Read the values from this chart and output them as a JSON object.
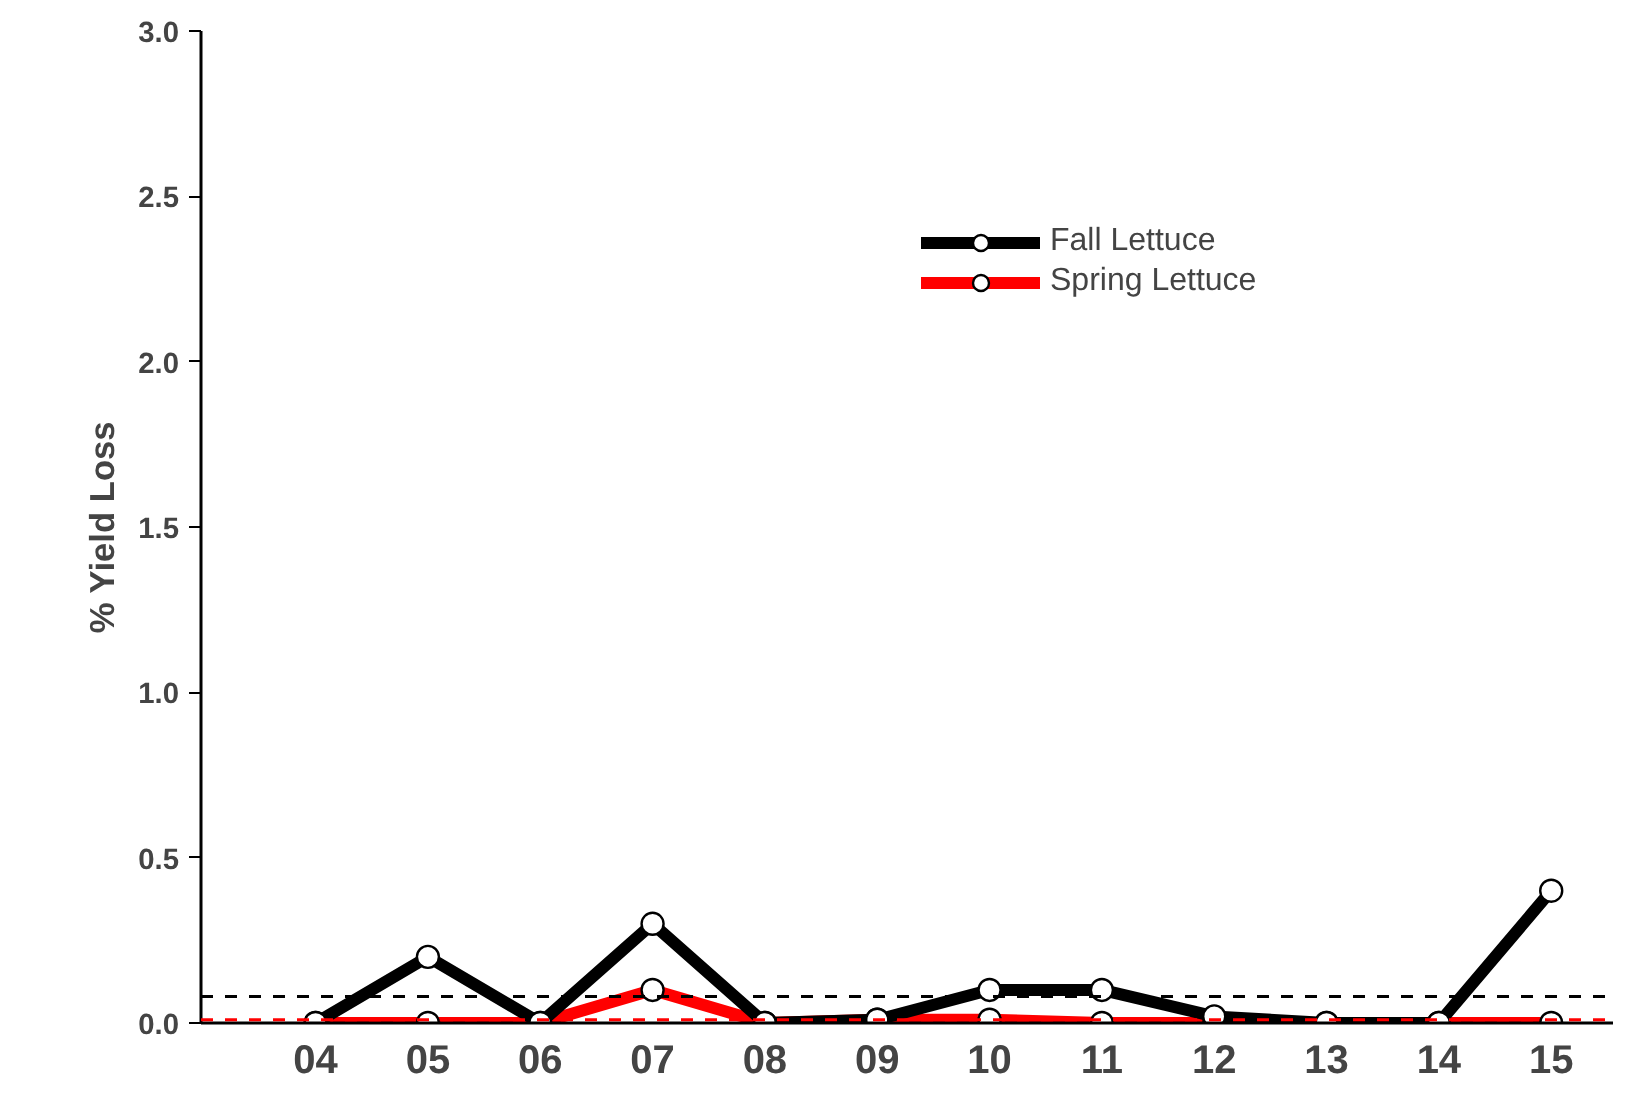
{
  "chart_data": {
    "type": "line",
    "ylabel": "% Yield Loss",
    "categories": [
      "04",
      "05",
      "06",
      "07",
      "08",
      "09",
      "10",
      "11",
      "12",
      "13",
      "14",
      "15"
    ],
    "series": [
      {
        "name": "Fall Lettuce",
        "color": "#000000",
        "values": [
          0,
          0.2,
          0,
          0.3,
          0,
          0.01,
          0.1,
          0.1,
          0.02,
          0,
          0,
          0.4
        ]
      },
      {
        "name": "Spring Lettuce",
        "color": "#ff0000",
        "values": [
          0,
          0,
          0,
          0.1,
          0,
          0.01,
          0.01,
          0,
          0,
          0,
          0,
          0
        ]
      }
    ],
    "ylim": [
      0,
      3
    ],
    "yticks": [
      {
        "value": 0,
        "label": "0.0"
      },
      {
        "value": 0.5,
        "label": "0.5"
      },
      {
        "value": 1,
        "label": "1.0"
      },
      {
        "value": 1.5,
        "label": "1.5"
      },
      {
        "value": 2,
        "label": "2.0"
      },
      {
        "value": 2.5,
        "label": "2.5"
      },
      {
        "value": 3,
        "label": "3.0"
      }
    ],
    "ref_lines": [
      {
        "axis": "y",
        "value": 0.08,
        "color": "#000000",
        "line_style": "dashed"
      },
      {
        "axis": "y",
        "value": 0.01,
        "color": "#ff0000",
        "line_style": "dashed"
      }
    ],
    "marker": "circle",
    "line_style": "solid",
    "grid": false,
    "legend": "top right"
  }
}
